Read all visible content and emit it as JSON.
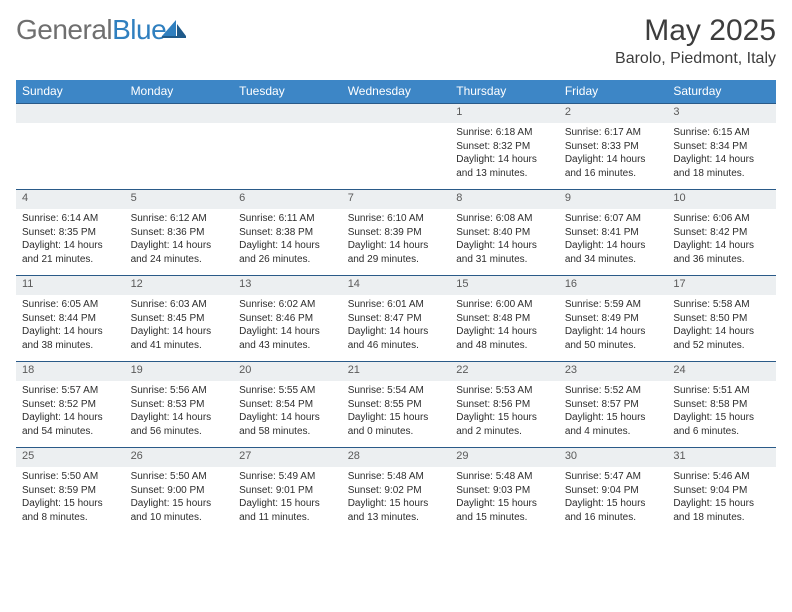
{
  "logo": {
    "part1": "General",
    "part2": "Blue"
  },
  "title": "May 2025",
  "location": "Barolo, Piedmont, Italy",
  "colors": {
    "header_bg": "#3d86c6",
    "header_fg": "#ffffff",
    "daynum_bg": "#eceff1",
    "daynum_border_top": "#2a5a88",
    "body_text": "#2d2d2d",
    "title_text": "#3d3d3d",
    "logo_grey": "#6f6f6f",
    "logo_blue": "#2f7fbf"
  },
  "dayHeaders": [
    "Sunday",
    "Monday",
    "Tuesday",
    "Wednesday",
    "Thursday",
    "Friday",
    "Saturday"
  ],
  "weeks": [
    [
      {
        "n": "",
        "sr": "",
        "ss": "",
        "dl": ""
      },
      {
        "n": "",
        "sr": "",
        "ss": "",
        "dl": ""
      },
      {
        "n": "",
        "sr": "",
        "ss": "",
        "dl": ""
      },
      {
        "n": "",
        "sr": "",
        "ss": "",
        "dl": ""
      },
      {
        "n": "1",
        "sr": "Sunrise: 6:18 AM",
        "ss": "Sunset: 8:32 PM",
        "dl": "Daylight: 14 hours and 13 minutes."
      },
      {
        "n": "2",
        "sr": "Sunrise: 6:17 AM",
        "ss": "Sunset: 8:33 PM",
        "dl": "Daylight: 14 hours and 16 minutes."
      },
      {
        "n": "3",
        "sr": "Sunrise: 6:15 AM",
        "ss": "Sunset: 8:34 PM",
        "dl": "Daylight: 14 hours and 18 minutes."
      }
    ],
    [
      {
        "n": "4",
        "sr": "Sunrise: 6:14 AM",
        "ss": "Sunset: 8:35 PM",
        "dl": "Daylight: 14 hours and 21 minutes."
      },
      {
        "n": "5",
        "sr": "Sunrise: 6:12 AM",
        "ss": "Sunset: 8:36 PM",
        "dl": "Daylight: 14 hours and 24 minutes."
      },
      {
        "n": "6",
        "sr": "Sunrise: 6:11 AM",
        "ss": "Sunset: 8:38 PM",
        "dl": "Daylight: 14 hours and 26 minutes."
      },
      {
        "n": "7",
        "sr": "Sunrise: 6:10 AM",
        "ss": "Sunset: 8:39 PM",
        "dl": "Daylight: 14 hours and 29 minutes."
      },
      {
        "n": "8",
        "sr": "Sunrise: 6:08 AM",
        "ss": "Sunset: 8:40 PM",
        "dl": "Daylight: 14 hours and 31 minutes."
      },
      {
        "n": "9",
        "sr": "Sunrise: 6:07 AM",
        "ss": "Sunset: 8:41 PM",
        "dl": "Daylight: 14 hours and 34 minutes."
      },
      {
        "n": "10",
        "sr": "Sunrise: 6:06 AM",
        "ss": "Sunset: 8:42 PM",
        "dl": "Daylight: 14 hours and 36 minutes."
      }
    ],
    [
      {
        "n": "11",
        "sr": "Sunrise: 6:05 AM",
        "ss": "Sunset: 8:44 PM",
        "dl": "Daylight: 14 hours and 38 minutes."
      },
      {
        "n": "12",
        "sr": "Sunrise: 6:03 AM",
        "ss": "Sunset: 8:45 PM",
        "dl": "Daylight: 14 hours and 41 minutes."
      },
      {
        "n": "13",
        "sr": "Sunrise: 6:02 AM",
        "ss": "Sunset: 8:46 PM",
        "dl": "Daylight: 14 hours and 43 minutes."
      },
      {
        "n": "14",
        "sr": "Sunrise: 6:01 AM",
        "ss": "Sunset: 8:47 PM",
        "dl": "Daylight: 14 hours and 46 minutes."
      },
      {
        "n": "15",
        "sr": "Sunrise: 6:00 AM",
        "ss": "Sunset: 8:48 PM",
        "dl": "Daylight: 14 hours and 48 minutes."
      },
      {
        "n": "16",
        "sr": "Sunrise: 5:59 AM",
        "ss": "Sunset: 8:49 PM",
        "dl": "Daylight: 14 hours and 50 minutes."
      },
      {
        "n": "17",
        "sr": "Sunrise: 5:58 AM",
        "ss": "Sunset: 8:50 PM",
        "dl": "Daylight: 14 hours and 52 minutes."
      }
    ],
    [
      {
        "n": "18",
        "sr": "Sunrise: 5:57 AM",
        "ss": "Sunset: 8:52 PM",
        "dl": "Daylight: 14 hours and 54 minutes."
      },
      {
        "n": "19",
        "sr": "Sunrise: 5:56 AM",
        "ss": "Sunset: 8:53 PM",
        "dl": "Daylight: 14 hours and 56 minutes."
      },
      {
        "n": "20",
        "sr": "Sunrise: 5:55 AM",
        "ss": "Sunset: 8:54 PM",
        "dl": "Daylight: 14 hours and 58 minutes."
      },
      {
        "n": "21",
        "sr": "Sunrise: 5:54 AM",
        "ss": "Sunset: 8:55 PM",
        "dl": "Daylight: 15 hours and 0 minutes."
      },
      {
        "n": "22",
        "sr": "Sunrise: 5:53 AM",
        "ss": "Sunset: 8:56 PM",
        "dl": "Daylight: 15 hours and 2 minutes."
      },
      {
        "n": "23",
        "sr": "Sunrise: 5:52 AM",
        "ss": "Sunset: 8:57 PM",
        "dl": "Daylight: 15 hours and 4 minutes."
      },
      {
        "n": "24",
        "sr": "Sunrise: 5:51 AM",
        "ss": "Sunset: 8:58 PM",
        "dl": "Daylight: 15 hours and 6 minutes."
      }
    ],
    [
      {
        "n": "25",
        "sr": "Sunrise: 5:50 AM",
        "ss": "Sunset: 8:59 PM",
        "dl": "Daylight: 15 hours and 8 minutes."
      },
      {
        "n": "26",
        "sr": "Sunrise: 5:50 AM",
        "ss": "Sunset: 9:00 PM",
        "dl": "Daylight: 15 hours and 10 minutes."
      },
      {
        "n": "27",
        "sr": "Sunrise: 5:49 AM",
        "ss": "Sunset: 9:01 PM",
        "dl": "Daylight: 15 hours and 11 minutes."
      },
      {
        "n": "28",
        "sr": "Sunrise: 5:48 AM",
        "ss": "Sunset: 9:02 PM",
        "dl": "Daylight: 15 hours and 13 minutes."
      },
      {
        "n": "29",
        "sr": "Sunrise: 5:48 AM",
        "ss": "Sunset: 9:03 PM",
        "dl": "Daylight: 15 hours and 15 minutes."
      },
      {
        "n": "30",
        "sr": "Sunrise: 5:47 AM",
        "ss": "Sunset: 9:04 PM",
        "dl": "Daylight: 15 hours and 16 minutes."
      },
      {
        "n": "31",
        "sr": "Sunrise: 5:46 AM",
        "ss": "Sunset: 9:04 PM",
        "dl": "Daylight: 15 hours and 18 minutes."
      }
    ]
  ]
}
